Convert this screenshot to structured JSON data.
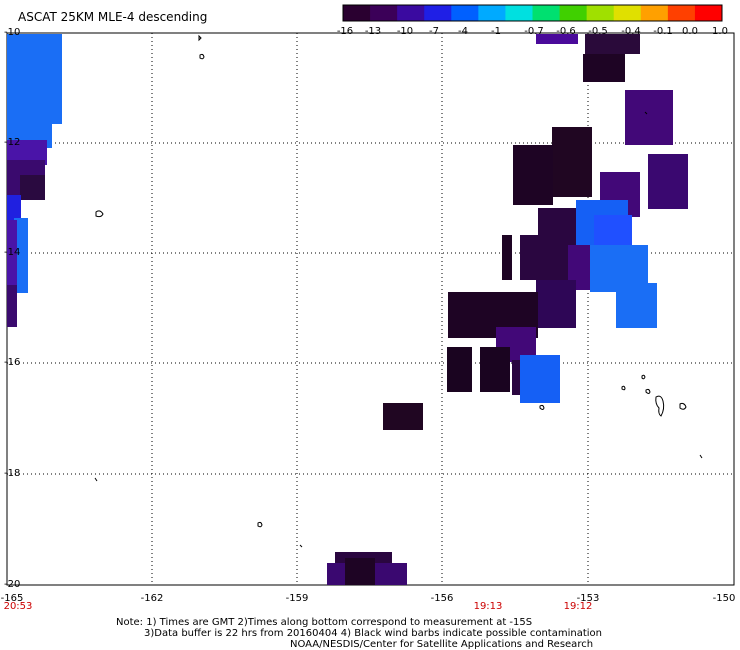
{
  "title": "ASCAT 25KM MLE-4 descending",
  "colorbar": {
    "colors": [
      "#2a0030",
      "#3b0058",
      "#3a0aa0",
      "#1f1fe6",
      "#0060ff",
      "#00aaff",
      "#00e0e0",
      "#00e070",
      "#40d000",
      "#a0e000",
      "#e0e000",
      "#ffa000",
      "#ff4000",
      "#ff0000"
    ],
    "labels": [
      "-16",
      "-13",
      "-10",
      "-7",
      "-4",
      "-1",
      "-0.7",
      "-0.6",
      "-0.5",
      "-0.4",
      "-0.1",
      "0.0",
      "1.0"
    ]
  },
  "axes": {
    "y_labels": [
      "-10",
      "-12",
      "-14",
      "-16",
      "-18",
      "-20"
    ],
    "x_labels": [
      "-165",
      "-162",
      "-159",
      "-156",
      "-153",
      "-150"
    ]
  },
  "times": [
    "20:53",
    "19:13",
    "19:12"
  ],
  "notes": {
    "line1": "Note: 1) Times are GMT 2)Times along bottom correspond to measurement at -15S",
    "line2": "3)Data buffer is 22 hrs from 20160404 4) Black wind barbs indicate possible contamination",
    "line3": "NOAA/NESDIS/Center for Satellite Applications and Research"
  }
}
